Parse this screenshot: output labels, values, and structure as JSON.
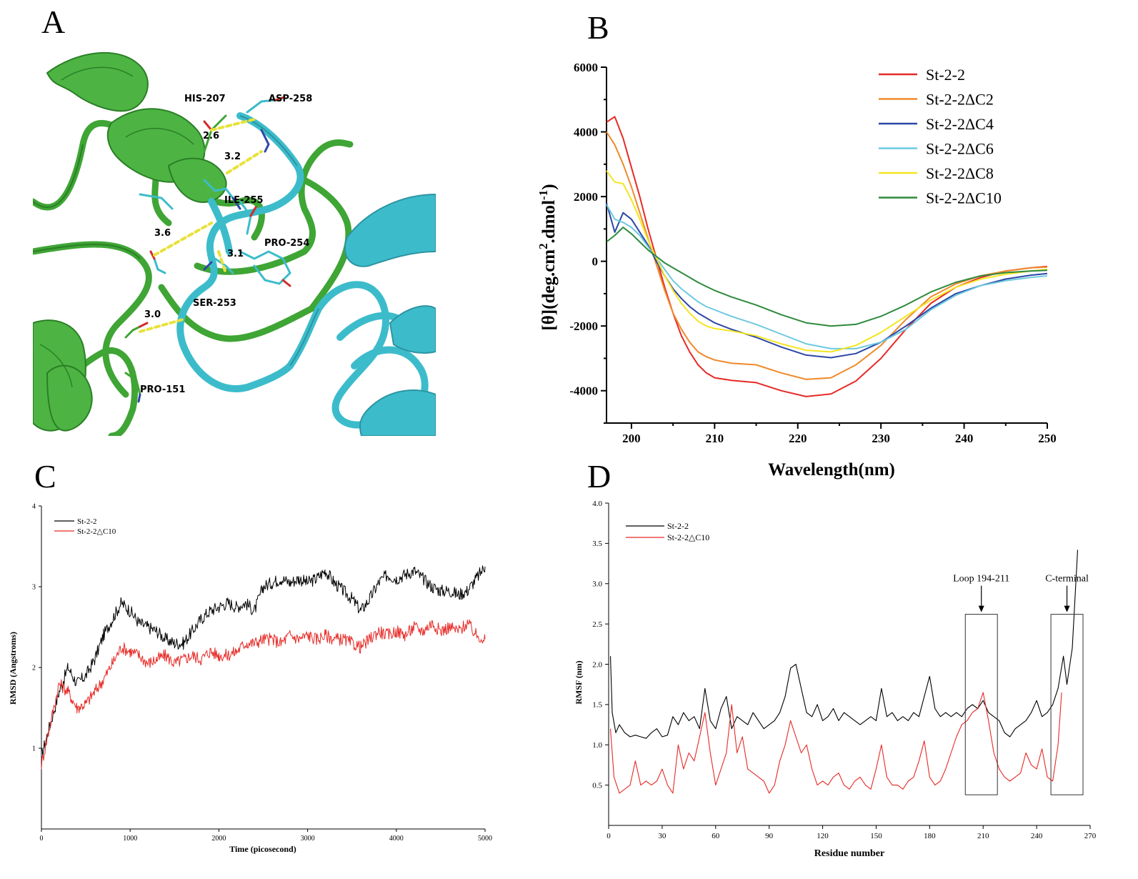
{
  "panels": {
    "a": "A",
    "b": "B",
    "c": "C",
    "d": "D"
  },
  "structure": {
    "residues": [
      "HIS-207",
      "ASP-258",
      "ILE-255",
      "PRO-254",
      "SER-253",
      "PRO-151"
    ],
    "distances": [
      "2.6",
      "3.2",
      "3.6",
      "3.1",
      "3.0"
    ],
    "colors": {
      "chain_a": "#3fa535",
      "chain_b": "#3cbccb",
      "hbond": "#e8e23a"
    }
  },
  "chart_data": [
    {
      "id": "B",
      "type": "line",
      "xlabel": "Wavelength(nm)",
      "ylabel_parts": {
        "pre": "[θ](deg.cm",
        "sup1": "2",
        "mid": ".dmol",
        "sup2": "-1",
        "post": ")"
      },
      "xlim": [
        197,
        250
      ],
      "ylim": [
        -5000,
        6000
      ],
      "xticks": [
        200,
        210,
        220,
        230,
        240,
        250
      ],
      "yticks": [
        -4000,
        -2000,
        0,
        2000,
        4000,
        6000
      ],
      "series": [
        {
          "name": "St-2-2",
          "color": "#e62a26",
          "x": [
            197,
            198,
            199,
            200,
            201,
            202,
            203,
            204,
            205,
            206,
            207,
            208,
            209,
            210,
            212,
            215,
            218,
            221,
            224,
            227,
            230,
            233,
            236,
            239,
            242,
            245,
            248,
            250
          ],
          "y": [
            4300,
            4470,
            3800,
            2900,
            2000,
            1000,
            100,
            -800,
            -1600,
            -2300,
            -2800,
            -3200,
            -3450,
            -3600,
            -3680,
            -3750,
            -4000,
            -4180,
            -4100,
            -3700,
            -3000,
            -2100,
            -1300,
            -800,
            -500,
            -300,
            -200,
            -160
          ]
        },
        {
          "name": "St-2-2ΔC2",
          "color": "#f08a2a",
          "x": [
            197,
            198,
            199,
            200,
            201,
            202,
            203,
            204,
            205,
            206,
            207,
            208,
            209,
            210,
            212,
            215,
            218,
            221,
            224,
            227,
            230,
            233,
            236,
            239,
            242,
            245,
            248,
            250
          ],
          "y": [
            4000,
            3600,
            3000,
            2300,
            1500,
            700,
            -100,
            -900,
            -1600,
            -2100,
            -2500,
            -2800,
            -2950,
            -3050,
            -3150,
            -3200,
            -3450,
            -3650,
            -3600,
            -3200,
            -2600,
            -1800,
            -1100,
            -700,
            -450,
            -300,
            -200,
            -180
          ]
        },
        {
          "name": "St-2-2ΔC4",
          "color": "#2d47a6",
          "x": [
            197,
            198,
            199,
            200,
            201,
            202,
            203,
            204,
            205,
            206,
            207,
            208,
            209,
            210,
            212,
            215,
            218,
            221,
            224,
            227,
            230,
            233,
            236,
            239,
            242,
            245,
            248,
            250
          ],
          "y": [
            1800,
            900,
            1500,
            1300,
            900,
            500,
            0,
            -450,
            -850,
            -1150,
            -1400,
            -1600,
            -1750,
            -1900,
            -2100,
            -2350,
            -2650,
            -2900,
            -2980,
            -2850,
            -2500,
            -2000,
            -1450,
            -1000,
            -750,
            -550,
            -430,
            -380
          ]
        },
        {
          "name": "St-2-2ΔC6",
          "color": "#6ec9df",
          "x": [
            197,
            198,
            199,
            200,
            201,
            202,
            203,
            204,
            205,
            206,
            207,
            208,
            209,
            210,
            212,
            215,
            218,
            221,
            224,
            227,
            230,
            233,
            236,
            239,
            242,
            245,
            248,
            250
          ],
          "y": [
            1750,
            1300,
            1200,
            1050,
            800,
            450,
            100,
            -250,
            -600,
            -850,
            -1050,
            -1250,
            -1400,
            -1500,
            -1700,
            -1950,
            -2250,
            -2550,
            -2700,
            -2700,
            -2500,
            -2100,
            -1500,
            -1050,
            -750,
            -600,
            -500,
            -450
          ]
        },
        {
          "name": "St-2-2ΔC8",
          "color": "#f3e621",
          "x": [
            197,
            198,
            199,
            200,
            201,
            202,
            203,
            204,
            205,
            206,
            207,
            208,
            209,
            210,
            212,
            215,
            218,
            221,
            224,
            227,
            230,
            233,
            236,
            239,
            242,
            245,
            248,
            250
          ],
          "y": [
            2800,
            2450,
            2400,
            1900,
            1300,
            650,
            100,
            -450,
            -900,
            -1300,
            -1600,
            -1850,
            -2000,
            -2080,
            -2150,
            -2300,
            -2550,
            -2750,
            -2800,
            -2600,
            -2200,
            -1700,
            -1200,
            -800,
            -550,
            -400,
            -300,
            -250
          ]
        },
        {
          "name": "St-2-2ΔC10",
          "color": "#2e8a3c",
          "x": [
            197,
            198,
            199,
            200,
            201,
            202,
            203,
            204,
            205,
            206,
            207,
            208,
            209,
            210,
            212,
            215,
            218,
            221,
            224,
            227,
            230,
            233,
            236,
            239,
            242,
            245,
            248,
            250
          ],
          "y": [
            600,
            800,
            1050,
            850,
            600,
            350,
            150,
            -50,
            -200,
            -350,
            -500,
            -650,
            -780,
            -900,
            -1100,
            -1350,
            -1650,
            -1900,
            -2000,
            -1950,
            -1700,
            -1350,
            -950,
            -650,
            -450,
            -350,
            -300,
            -280
          ]
        }
      ]
    },
    {
      "id": "C",
      "type": "line",
      "xlabel": "Time (picosecond)",
      "ylabel": "RMSD (Angstroms)",
      "xlim": [
        0,
        5000
      ],
      "ylim": [
        0,
        4
      ],
      "xticks": [
        0,
        1000,
        2000,
        3000,
        4000,
        5000
      ],
      "yticks": [
        1,
        2,
        3,
        4
      ],
      "series": [
        {
          "name": "St-2-2",
          "color": "#000000",
          "x": [
            0,
            100,
            200,
            300,
            400,
            500,
            600,
            700,
            800,
            900,
            1000,
            1100,
            1200,
            1300,
            1400,
            1500,
            1600,
            1700,
            1800,
            1900,
            2000,
            2100,
            2200,
            2300,
            2400,
            2500,
            2600,
            2700,
            2800,
            2900,
            3000,
            3100,
            3200,
            3300,
            3400,
            3500,
            3600,
            3700,
            3800,
            3900,
            4000,
            4100,
            4200,
            4300,
            4400,
            4500,
            4600,
            4700,
            4800,
            4900,
            5000
          ],
          "y": [
            0.9,
            1.3,
            1.7,
            2.0,
            1.8,
            1.9,
            2.1,
            2.4,
            2.6,
            2.8,
            2.7,
            2.55,
            2.5,
            2.45,
            2.35,
            2.3,
            2.3,
            2.45,
            2.6,
            2.7,
            2.75,
            2.8,
            2.75,
            2.8,
            2.7,
            3.0,
            3.05,
            3.1,
            3.05,
            3.1,
            3.05,
            3.1,
            3.2,
            3.05,
            2.95,
            2.85,
            2.7,
            2.85,
            3.05,
            3.15,
            3.1,
            3.15,
            3.2,
            3.1,
            3.0,
            2.95,
            2.95,
            2.9,
            2.95,
            3.1,
            3.25
          ]
        },
        {
          "name": "St-2-2△C10",
          "color": "#e62a26",
          "x": [
            0,
            100,
            200,
            300,
            400,
            500,
            600,
            700,
            800,
            900,
            1000,
            1100,
            1200,
            1300,
            1400,
            1500,
            1600,
            1700,
            1800,
            1900,
            2000,
            2100,
            2200,
            2300,
            2400,
            2500,
            2600,
            2700,
            2800,
            2900,
            3000,
            3100,
            3200,
            3300,
            3400,
            3500,
            3600,
            3700,
            3800,
            3900,
            4000,
            4100,
            4200,
            4300,
            4400,
            4500,
            4600,
            4700,
            4800,
            4900,
            5000
          ],
          "y": [
            0.8,
            1.3,
            1.8,
            1.7,
            1.5,
            1.55,
            1.7,
            1.85,
            2.05,
            2.25,
            2.2,
            2.15,
            2.05,
            2.1,
            2.15,
            2.05,
            2.1,
            2.15,
            2.1,
            2.2,
            2.15,
            2.15,
            2.2,
            2.3,
            2.3,
            2.35,
            2.35,
            2.3,
            2.4,
            2.35,
            2.4,
            2.35,
            2.4,
            2.35,
            2.35,
            2.3,
            2.25,
            2.35,
            2.45,
            2.4,
            2.45,
            2.4,
            2.5,
            2.45,
            2.55,
            2.45,
            2.5,
            2.45,
            2.55,
            2.4,
            2.35
          ]
        }
      ]
    },
    {
      "id": "D",
      "type": "line",
      "xlabel": "Residue number",
      "ylabel": "RMSF (nm)",
      "xlim": [
        0,
        270
      ],
      "ylim": [
        0,
        4.0
      ],
      "xticks": [
        0,
        30,
        60,
        90,
        120,
        150,
        180,
        210,
        240,
        270
      ],
      "yticks": [
        0.5,
        1.0,
        1.5,
        2.0,
        2.5,
        3.0,
        3.5,
        4.0
      ],
      "annotations": [
        {
          "text": "Loop 194-211",
          "box_x": [
            200,
            218
          ],
          "box_y": [
            0.38,
            2.62
          ],
          "arrow_x": 209
        },
        {
          "text": "C-terminal",
          "box_x": [
            248,
            266
          ],
          "box_y": [
            0.38,
            2.62
          ],
          "arrow_x": 257
        }
      ],
      "series": [
        {
          "name": "St-2-2",
          "color": "#000000",
          "x": [
            1,
            2,
            4,
            6,
            9,
            12,
            15,
            18,
            21,
            24,
            27,
            30,
            33,
            36,
            39,
            42,
            45,
            48,
            51,
            54,
            57,
            60,
            63,
            66,
            69,
            72,
            75,
            78,
            81,
            84,
            87,
            90,
            93,
            96,
            99,
            102,
            105,
            108,
            111,
            114,
            117,
            120,
            123,
            126,
            129,
            132,
            135,
            138,
            141,
            144,
            147,
            150,
            153,
            156,
            159,
            162,
            165,
            168,
            171,
            174,
            177,
            180,
            183,
            186,
            189,
            192,
            195,
            198,
            201,
            204,
            207,
            210,
            213,
            216,
            219,
            222,
            225,
            228,
            231,
            234,
            237,
            240,
            243,
            246,
            249,
            252,
            255,
            257,
            260,
            263
          ],
          "y": [
            2.1,
            1.4,
            1.15,
            1.25,
            1.15,
            1.1,
            1.12,
            1.1,
            1.08,
            1.15,
            1.2,
            1.1,
            1.12,
            1.35,
            1.25,
            1.4,
            1.3,
            1.35,
            1.2,
            1.7,
            1.3,
            1.2,
            1.45,
            1.6,
            1.2,
            1.35,
            1.3,
            1.25,
            1.4,
            1.3,
            1.2,
            1.25,
            1.3,
            1.4,
            1.6,
            1.95,
            2.0,
            1.7,
            1.4,
            1.35,
            1.5,
            1.3,
            1.35,
            1.45,
            1.3,
            1.4,
            1.35,
            1.3,
            1.25,
            1.3,
            1.35,
            1.3,
            1.7,
            1.35,
            1.4,
            1.3,
            1.35,
            1.3,
            1.4,
            1.35,
            1.6,
            1.85,
            1.45,
            1.35,
            1.4,
            1.35,
            1.4,
            1.35,
            1.45,
            1.5,
            1.45,
            1.55,
            1.4,
            1.35,
            1.3,
            1.15,
            1.1,
            1.2,
            1.25,
            1.3,
            1.4,
            1.55,
            1.35,
            1.4,
            1.5,
            1.7,
            2.1,
            1.75,
            2.2,
            3.42
          ]
        },
        {
          "name": "St-2-2△C10",
          "color": "#e62a26",
          "x": [
            1,
            3,
            6,
            9,
            12,
            15,
            18,
            21,
            24,
            27,
            30,
            33,
            36,
            39,
            42,
            45,
            48,
            51,
            54,
            57,
            60,
            63,
            66,
            69,
            72,
            75,
            78,
            81,
            84,
            87,
            90,
            93,
            96,
            99,
            102,
            105,
            108,
            111,
            114,
            117,
            120,
            123,
            126,
            129,
            132,
            135,
            138,
            141,
            144,
            147,
            150,
            153,
            156,
            159,
            162,
            165,
            168,
            171,
            174,
            177,
            180,
            183,
            186,
            189,
            192,
            195,
            198,
            201,
            204,
            207,
            210,
            213,
            216,
            219,
            222,
            225,
            228,
            231,
            234,
            237,
            240,
            243,
            246,
            249,
            252,
            254
          ],
          "y": [
            1.2,
            0.6,
            0.4,
            0.45,
            0.5,
            0.8,
            0.5,
            0.55,
            0.5,
            0.55,
            0.7,
            0.5,
            0.4,
            1.0,
            0.7,
            0.9,
            0.8,
            1.1,
            1.4,
            0.9,
            0.5,
            0.7,
            0.9,
            1.5,
            0.9,
            1.1,
            0.7,
            0.65,
            0.6,
            0.55,
            0.4,
            0.5,
            0.8,
            1.0,
            1.3,
            1.1,
            0.9,
            1.0,
            0.7,
            0.5,
            0.55,
            0.5,
            0.6,
            0.65,
            0.5,
            0.45,
            0.55,
            0.6,
            0.5,
            0.45,
            0.7,
            1.0,
            0.6,
            0.5,
            0.5,
            0.45,
            0.55,
            0.6,
            0.8,
            1.05,
            0.6,
            0.5,
            0.55,
            0.7,
            0.9,
            1.1,
            1.25,
            1.3,
            1.4,
            1.45,
            1.65,
            1.3,
            0.9,
            0.7,
            0.6,
            0.55,
            0.6,
            0.65,
            0.9,
            0.75,
            0.7,
            0.95,
            0.6,
            0.55,
            1.0,
            1.65
          ]
        }
      ]
    }
  ]
}
